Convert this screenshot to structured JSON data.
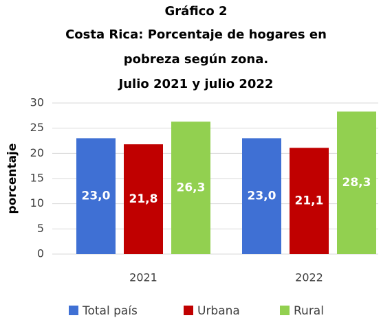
{
  "chart_data": {
    "type": "bar",
    "title": [
      "Gráfico 2",
      "Costa Rica: Porcentaje de hogares en",
      "pobreza según zona.",
      "Julio 2021 y julio 2022"
    ],
    "ylabel": "porcentaje",
    "categories": [
      "2021",
      "2022"
    ],
    "series": [
      {
        "name": "Total país",
        "color": "#3f70d4",
        "values": [
          23.0,
          23.0
        ],
        "value_labels": [
          "23,0",
          "23,0"
        ]
      },
      {
        "name": "Urbana",
        "color": "#c00000",
        "values": [
          21.8,
          21.1
        ],
        "value_labels": [
          "21,8",
          "21,1"
        ]
      },
      {
        "name": "Rural",
        "color": "#92d050",
        "values": [
          26.3,
          28.3
        ],
        "value_labels": [
          "26,3",
          "28,3"
        ]
      }
    ],
    "ylim": [
      0,
      30
    ],
    "yticks": [
      0,
      5,
      10,
      15,
      20,
      25,
      30
    ],
    "grid": true,
    "legend": "bottom"
  }
}
